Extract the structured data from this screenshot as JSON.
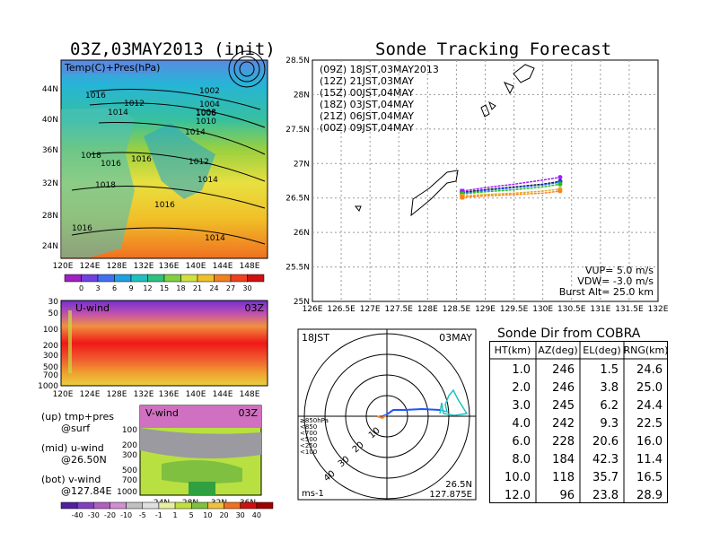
{
  "left": {
    "title": "03Z,03MAY2013 (init)",
    "map_label": "Temp(C)+Pres(hPa)",
    "lat_ticks": [
      "44N",
      "40N",
      "36N",
      "32N",
      "28N",
      "24N"
    ],
    "lon_ticks": [
      "120E",
      "124E",
      "128E",
      "132E",
      "136E",
      "140E",
      "144E",
      "148E"
    ],
    "isobars": [
      "1002",
      "1004",
      "1006",
      "1008",
      "1010",
      "1012",
      "1012",
      "1014",
      "1014",
      "1014",
      "1016",
      "1016",
      "1016",
      "1018",
      "1018",
      "1016",
      "1016",
      "1014"
    ],
    "temp_colorbar": [
      "0",
      "3",
      "6",
      "9",
      "12",
      "15",
      "18",
      "21",
      "24",
      "27",
      "30"
    ],
    "u_wind": {
      "label": "U-wind",
      "time": "03Z",
      "levels": [
        "30",
        "50",
        "100",
        "200",
        "300",
        "500",
        "700",
        "1000"
      ]
    },
    "v_wind": {
      "label": "V-wind",
      "time": "03Z",
      "levels": [
        "100",
        "200",
        "300",
        "500",
        "700",
        "1000"
      ],
      "lat_ticks": [
        "24N",
        "28N",
        "32N",
        "36N"
      ]
    },
    "wind_colorbar": [
      "-40",
      "-30",
      "-20",
      "-10",
      "-5",
      "-1",
      "1",
      "5",
      "10",
      "20",
      "30",
      "40"
    ],
    "notes": [
      {
        "head": "(up) tmp+pres",
        "sub": "@surf"
      },
      {
        "head": "(mid) u-wind",
        "sub": "@26.50N"
      },
      {
        "head": "(bot) v-wind",
        "sub": "@127.84E"
      }
    ]
  },
  "right": {
    "title": "Sonde Tracking Forecast",
    "lat_ticks": [
      "28.5N",
      "28N",
      "27.5N",
      "27N",
      "26.5N",
      "26N",
      "25.5N",
      "25N"
    ],
    "lon_ticks": [
      "126E",
      "126.5E",
      "127E",
      "127.5E",
      "128E",
      "128.5E",
      "129E",
      "129.5E",
      "130E",
      "130.5E",
      "131E",
      "131.5E",
      "132E"
    ],
    "legend": [
      {
        "text": "(09Z)  18JST,03MAY2013",
        "color": "#000000"
      },
      {
        "text": "(12Z)  21JST,03MAY",
        "color": "#a020f0"
      },
      {
        "text": "(15Z)  00JST,04MAY",
        "color": "#2255ff"
      },
      {
        "text": "(18Z)  03JST,04MAY",
        "color": "#20c020"
      },
      {
        "text": "(21Z)  06JST,04MAY",
        "color": "#e0b020"
      },
      {
        "text": "(00Z)  09JST,04MAY",
        "color": "#ff8020"
      }
    ],
    "params": [
      "VUP=  5.0  m/s",
      "VDW= -3.0  m/s",
      "Burst Alt=  25.0  km"
    ]
  },
  "polar": {
    "time": "18JST",
    "date": "03MAY",
    "ring_labels": [
      "10",
      "20",
      "30",
      "40"
    ],
    "level_legend": [
      {
        "text": "≥850hPa",
        "color": "#ff2020"
      },
      {
        "text": "<850",
        "color": "#ff8020"
      },
      {
        "text": "<700",
        "color": "#e0b020"
      },
      {
        "text": "<500",
        "color": "#20c020"
      },
      {
        "text": "<250",
        "color": "#20c0c0"
      },
      {
        "text": "<100",
        "color": "#2255ff"
      }
    ],
    "units": "ms-1",
    "pos_lat": "26.5N",
    "pos_lon": "127.875E"
  },
  "table": {
    "title": "Sonde Dir from COBRA",
    "headers": [
      "HT(km)",
      "AZ(deg)",
      "EL(deg)",
      "RNG(km)"
    ],
    "rows": [
      [
        "1.0",
        "246",
        "1.5",
        "24.6"
      ],
      [
        "2.0",
        "246",
        "3.8",
        "25.0"
      ],
      [
        "3.0",
        "245",
        "6.2",
        "24.4"
      ],
      [
        "4.0",
        "242",
        "9.3",
        "22.5"
      ],
      [
        "6.0",
        "228",
        "20.6",
        "16.0"
      ],
      [
        "8.0",
        "184",
        "42.3",
        "11.4"
      ],
      [
        "10.0",
        "118",
        "35.7",
        "16.5"
      ],
      [
        "12.0",
        "96",
        "23.8",
        "28.9"
      ]
    ]
  },
  "chart_data": [
    {
      "type": "line",
      "title": "Sonde Tracking Forecast",
      "xlim": [
        126,
        132
      ],
      "ylim": [
        25,
        28.5
      ],
      "series": [
        {
          "name": "(09Z) 18JST,03MAY2013",
          "x": [
            128.6,
            129.0,
            129.5,
            130.0,
            130.3
          ],
          "y": [
            26.58,
            26.62,
            26.66,
            26.7,
            26.74
          ]
        },
        {
          "name": "(12Z) 21JST,03MAY",
          "x": [
            128.6,
            129.0,
            129.5,
            130.0,
            130.3
          ],
          "y": [
            26.6,
            26.65,
            26.7,
            26.76,
            26.8
          ]
        },
        {
          "name": "(15Z) 00JST,04MAY",
          "x": [
            128.6,
            129.0,
            129.5,
            130.0,
            130.3
          ],
          "y": [
            26.57,
            26.61,
            26.65,
            26.69,
            26.73
          ]
        },
        {
          "name": "(18Z) 03JST,04MAY",
          "x": [
            128.6,
            129.0,
            129.5,
            130.0,
            130.3
          ],
          "y": [
            26.56,
            26.59,
            26.62,
            26.66,
            26.7
          ]
        },
        {
          "name": "(21Z) 06JST,04MAY",
          "x": [
            128.6,
            129.0,
            129.5,
            130.0,
            130.3
          ],
          "y": [
            26.53,
            26.55,
            26.57,
            26.6,
            26.63
          ]
        },
        {
          "name": "(00Z) 09JST,04MAY",
          "x": [
            128.6,
            129.0,
            129.5,
            130.0,
            130.3
          ],
          "y": [
            26.51,
            26.53,
            26.55,
            26.57,
            26.6
          ]
        }
      ]
    },
    {
      "type": "table",
      "title": "Sonde Dir from COBRA",
      "columns": [
        "HT(km)",
        "AZ(deg)",
        "EL(deg)",
        "RNG(km)"
      ],
      "rows": [
        [
          1.0,
          246,
          1.5,
          24.6
        ],
        [
          2.0,
          246,
          3.8,
          25.0
        ],
        [
          3.0,
          245,
          6.2,
          24.4
        ],
        [
          4.0,
          242,
          9.3,
          22.5
        ],
        [
          6.0,
          228,
          20.6,
          16.0
        ],
        [
          8.0,
          184,
          42.3,
          11.4
        ],
        [
          10.0,
          118,
          35.7,
          16.5
        ],
        [
          12.0,
          96,
          23.8,
          28.9
        ]
      ]
    }
  ]
}
